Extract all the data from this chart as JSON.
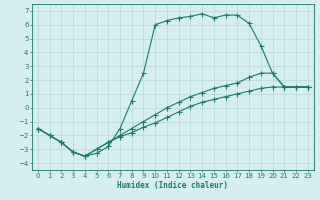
{
  "xlabel": "Humidex (Indice chaleur)",
  "background_color": "#d6eef0",
  "grid_color": "#b8d8d8",
  "line_color": "#1a7a6a",
  "xlim": [
    -0.5,
    23.5
  ],
  "ylim": [
    -4.5,
    7.5
  ],
  "xticks": [
    0,
    1,
    2,
    3,
    4,
    5,
    6,
    7,
    8,
    9,
    10,
    11,
    12,
    13,
    14,
    15,
    16,
    17,
    18,
    19,
    20,
    21,
    22,
    23
  ],
  "yticks": [
    -4,
    -3,
    -2,
    -1,
    0,
    1,
    2,
    3,
    4,
    5,
    6,
    7
  ],
  "line1_x": [
    0,
    1,
    2,
    3,
    4,
    5,
    6,
    7,
    8,
    9,
    10,
    11,
    12,
    13,
    14,
    15,
    16,
    17,
    18,
    19,
    20,
    21,
    22,
    23
  ],
  "line1_y": [
    -1.5,
    -2.0,
    -2.5,
    -3.2,
    -3.5,
    -3.3,
    -2.8,
    -1.5,
    0.5,
    2.5,
    6.0,
    6.3,
    6.5,
    6.6,
    6.8,
    6.5,
    6.7,
    6.7,
    6.1,
    4.5,
    2.5,
    1.5,
    1.5,
    1.5
  ],
  "line2_x": [
    0,
    1,
    2,
    3,
    4,
    5,
    6,
    7,
    8,
    9,
    10,
    11,
    12,
    13,
    14,
    15,
    16,
    17,
    18,
    19,
    20,
    21,
    22,
    23
  ],
  "line2_y": [
    -1.5,
    -2.0,
    -2.5,
    -3.2,
    -3.5,
    -3.0,
    -2.5,
    -2.0,
    -1.5,
    -1.0,
    -0.5,
    0.0,
    0.4,
    0.8,
    1.1,
    1.4,
    1.6,
    1.8,
    2.2,
    2.5,
    2.5,
    1.5,
    1.5,
    1.5
  ],
  "line3_x": [
    0,
    1,
    2,
    3,
    4,
    5,
    6,
    7,
    8,
    9,
    10,
    11,
    12,
    13,
    14,
    15,
    16,
    17,
    18,
    19,
    20,
    21,
    22,
    23
  ],
  "line3_y": [
    -1.5,
    -2.0,
    -2.5,
    -3.2,
    -3.5,
    -3.0,
    -2.5,
    -2.1,
    -1.8,
    -1.4,
    -1.1,
    -0.7,
    -0.3,
    0.1,
    0.4,
    0.6,
    0.8,
    1.0,
    1.2,
    1.4,
    1.5,
    1.5,
    1.5,
    1.5
  ]
}
